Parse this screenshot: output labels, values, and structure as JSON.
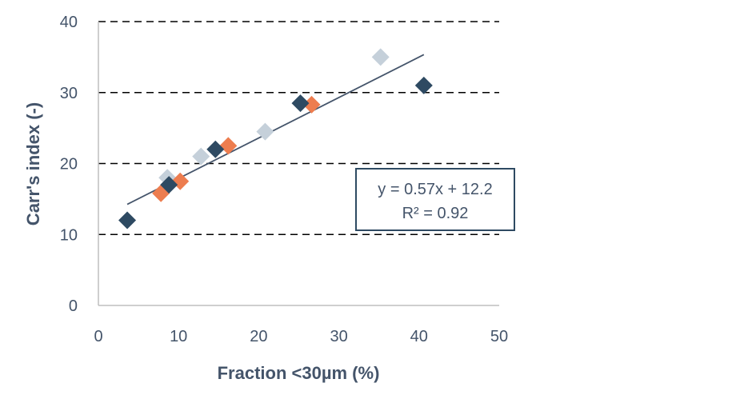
{
  "chart_data": {
    "type": "scatter",
    "xlabel": "Fraction <30µm (%)",
    "ylabel": "Carr's index (-)",
    "xlim": [
      0,
      50
    ],
    "ylim": [
      0,
      40
    ],
    "x_ticks": [
      "0",
      "10",
      "20",
      "30",
      "40",
      "50"
    ],
    "y_ticks": [
      "0",
      "10",
      "20",
      "30",
      "40"
    ],
    "grid": "horizontal dashed",
    "series": [
      {
        "color": "#2e4a62",
        "points": [
          [
            3.6,
            12.0
          ],
          [
            8.8,
            17.0
          ],
          [
            14.6,
            22.0
          ],
          [
            25.2,
            28.5
          ],
          [
            40.6,
            31.0
          ]
        ]
      },
      {
        "color": "#ed7d4f",
        "points": [
          [
            7.8,
            15.8
          ],
          [
            10.2,
            17.5
          ],
          [
            16.2,
            22.5
          ],
          [
            26.6,
            28.3
          ]
        ]
      },
      {
        "color": "#c5d0da",
        "points": [
          [
            8.6,
            18.0
          ],
          [
            12.8,
            21.0
          ],
          [
            20.8,
            24.5
          ],
          [
            35.2,
            35.0
          ]
        ]
      }
    ],
    "trendline": {
      "slope": 0.57,
      "intercept": 12.2,
      "x_range": [
        3.6,
        40.6
      ],
      "color": "#44546a",
      "equation": "y = 0.57x + 12.2",
      "r_squared": "R² = 0.92"
    }
  }
}
